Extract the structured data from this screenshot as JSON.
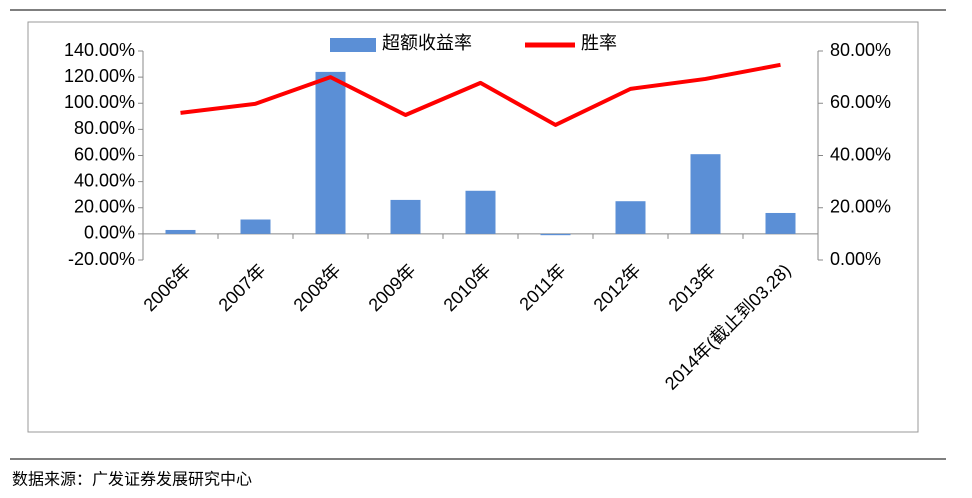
{
  "chart_data": {
    "type": "bar_line",
    "categories": [
      "2006年",
      "2007年",
      "2008年",
      "2009年",
      "2010年",
      "2011年",
      "2012年",
      "2013年",
      "2014年(截止到03.28)"
    ],
    "series": [
      {
        "name": "超额收益率",
        "color": "#5b8fd6",
        "type": "bar",
        "axis": "y",
        "values": [
          3,
          11,
          124,
          26,
          33,
          -1,
          25,
          61,
          16
        ]
      },
      {
        "name": "胜率",
        "color": "#ff0000",
        "type": "line",
        "axis": "y2",
        "values": [
          56.3,
          59.8,
          70,
          55.5,
          67.8,
          51.7,
          65.5,
          69.3,
          74.7
        ]
      }
    ],
    "ylim": [
      -20,
      140
    ],
    "yticks": [
      {
        "value": -20,
        "label": "-20.00%"
      },
      {
        "value": 0,
        "label": "0.00%"
      },
      {
        "value": 20,
        "label": "20.00%"
      },
      {
        "value": 40,
        "label": "40.00%"
      },
      {
        "value": 60,
        "label": "60.00%"
      },
      {
        "value": 80,
        "label": "80.00%"
      },
      {
        "value": 100,
        "label": "100.00%"
      },
      {
        "value": 120,
        "label": "120.00%"
      },
      {
        "value": 140,
        "label": "140.00%"
      }
    ],
    "y2lim": [
      0,
      80
    ],
    "y2ticks": [
      {
        "value": 0,
        "label": "0.00%"
      },
      {
        "value": 20,
        "label": "20.00%"
      },
      {
        "value": 40,
        "label": "40.00%"
      },
      {
        "value": 60,
        "label": "60.00%"
      },
      {
        "value": 80,
        "label": "80.00%"
      }
    ],
    "source": "数据来源：广发证券发展研究中心"
  }
}
